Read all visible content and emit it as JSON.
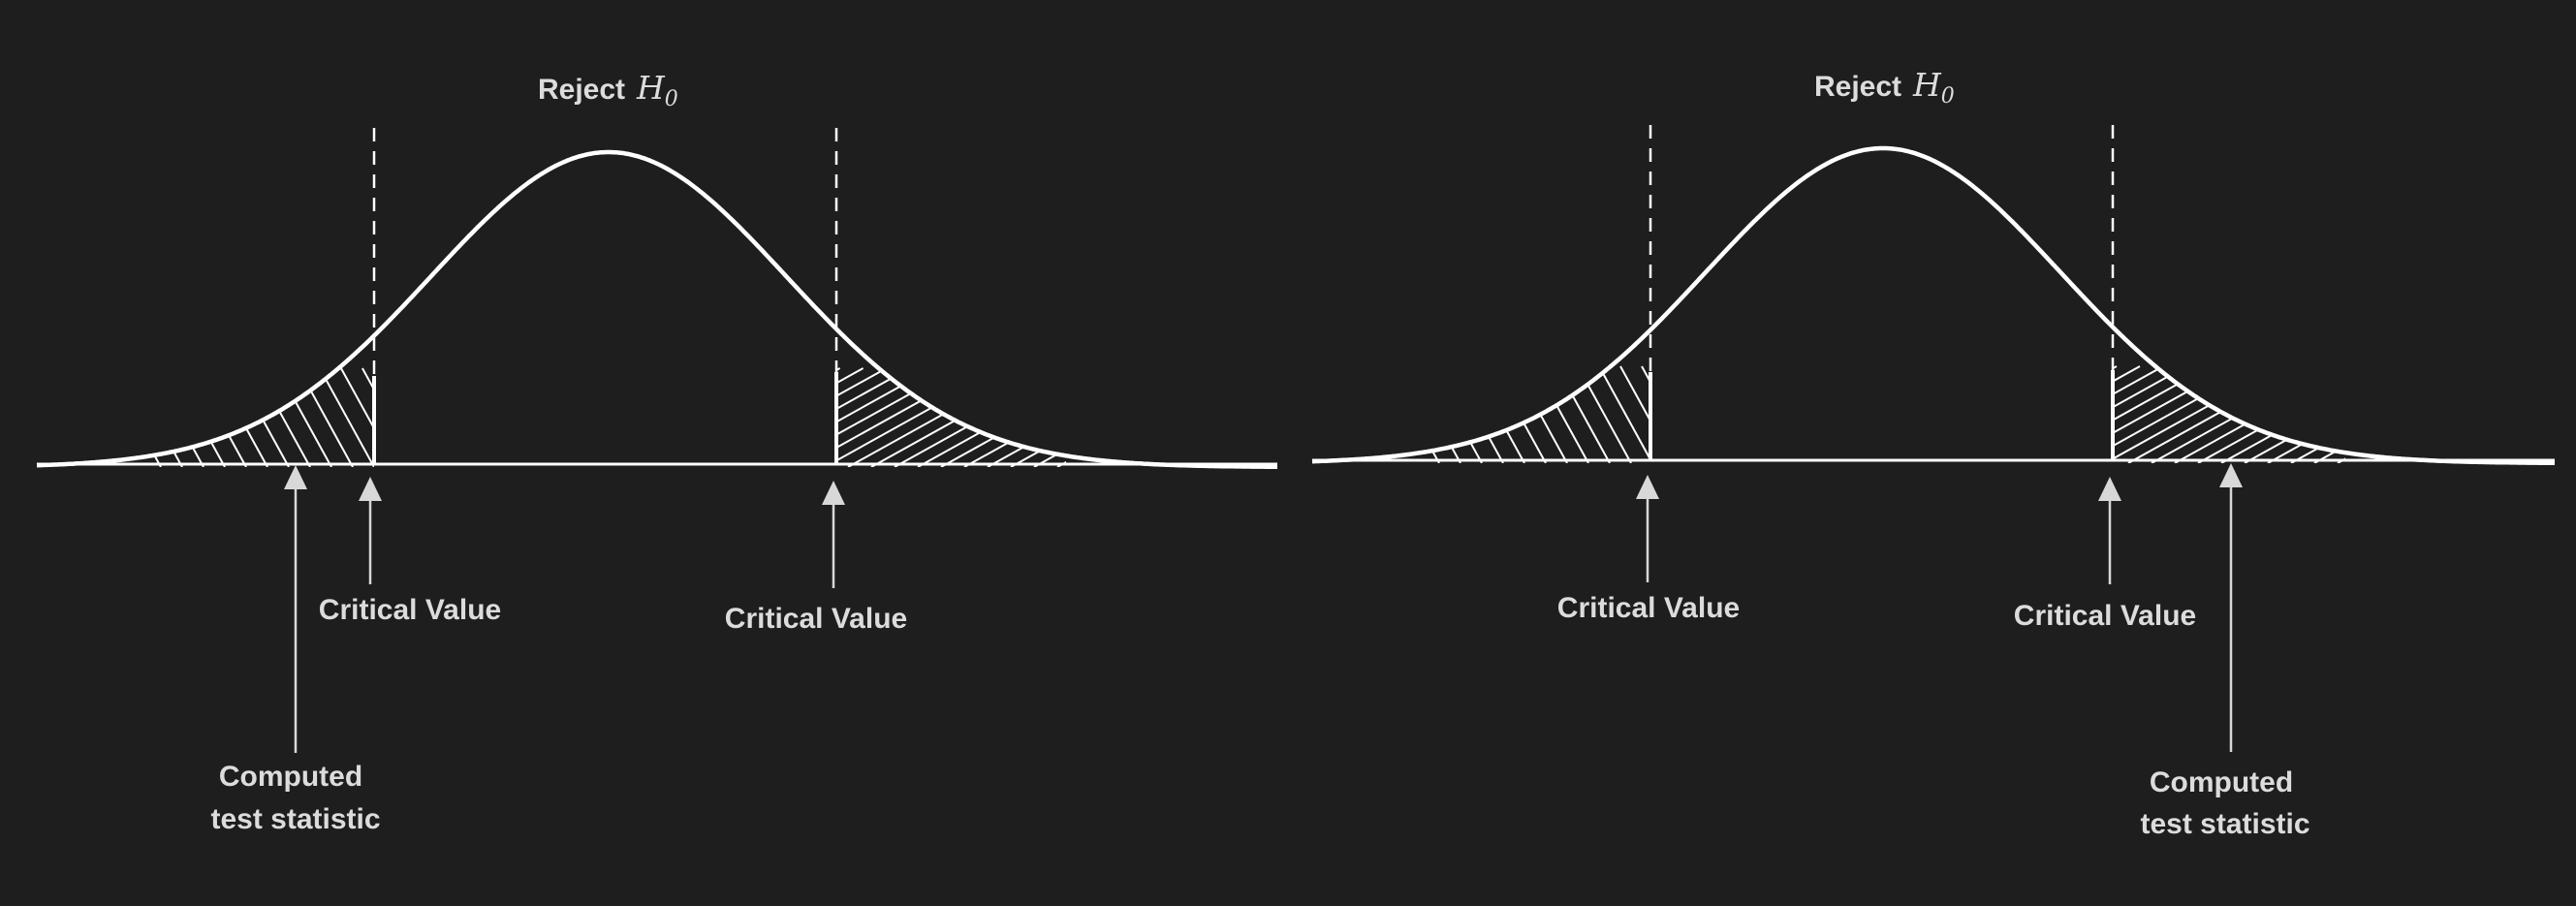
{
  "panels": [
    {
      "id": "left",
      "title": {
        "prefix": "Reject",
        "symbol": "H",
        "subscript": "0"
      },
      "critical_labels": [
        "Critical Value",
        "Critical Value"
      ],
      "statistic_label": [
        "Computed",
        "test statistic"
      ],
      "statistic_side": "left"
    },
    {
      "id": "right",
      "title": {
        "prefix": "Reject",
        "symbol": "H",
        "subscript": "0"
      },
      "critical_labels": [
        "Critical Value",
        "Critical Value"
      ],
      "statistic_label": [
        "Computed",
        "test statistic"
      ],
      "statistic_side": "right"
    }
  ],
  "colors": {
    "background": "#1e1e1e",
    "curve": "#ffffff",
    "text": "#dcdcdc",
    "arrow": "#d8d8d8"
  }
}
